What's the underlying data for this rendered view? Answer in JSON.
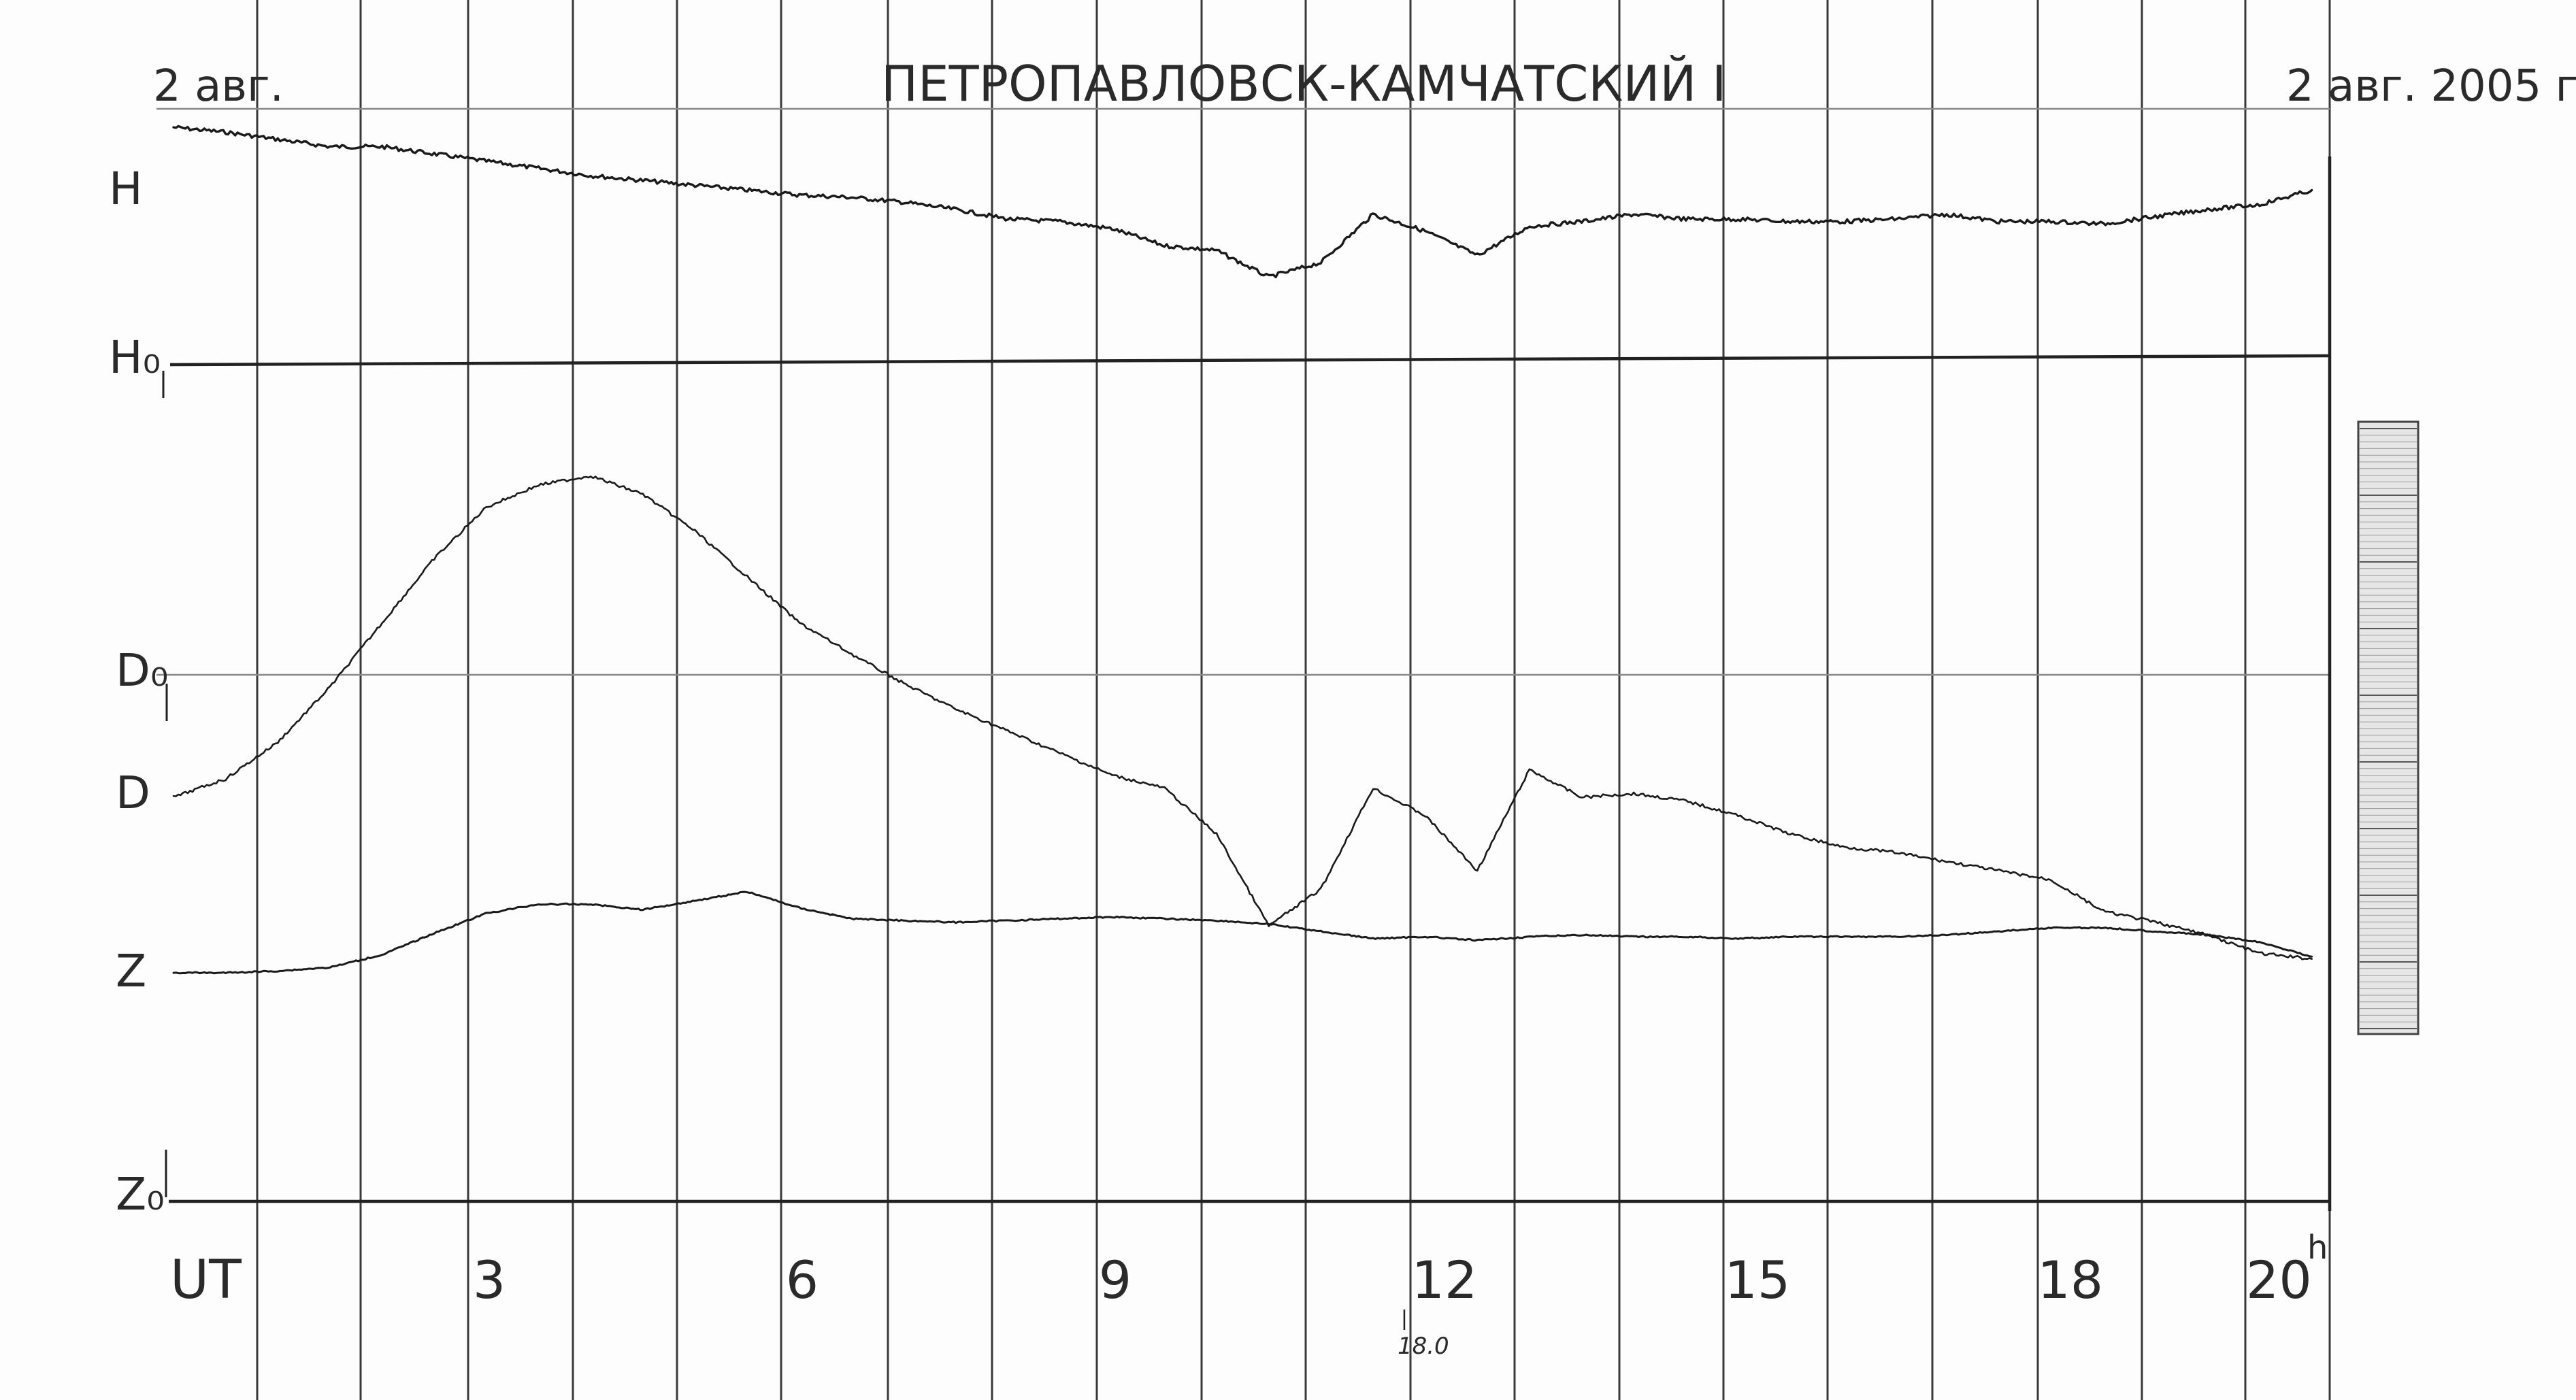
{
  "chart_data": {
    "type": "line",
    "header": {
      "left_date": "2 авг.",
      "station": "ПЕТРОПАВЛОВСК-КАМЧАТСКИЙ I",
      "right_date": "2 авг. 2005 г."
    },
    "trace_labels": [
      "H",
      "H₀",
      "D₀",
      "D",
      "Z",
      "Z₀"
    ],
    "x_axis": {
      "label": "UT",
      "ticks": [
        {
          "hour": 3,
          "label": "3"
        },
        {
          "hour": 6,
          "label": "6"
        },
        {
          "hour": 9,
          "label": "9"
        },
        {
          "hour": 12,
          "label": "12"
        },
        {
          "hour": 15,
          "label": "15"
        },
        {
          "hour": 18,
          "label": "18"
        },
        {
          "hour": 20,
          "label": "20"
        }
      ],
      "end_suffix": "h",
      "range": [
        0,
        20.5
      ]
    },
    "annotations": [
      {
        "hour": 11.8,
        "text": "18.0"
      }
    ],
    "series": [
      {
        "key": "H",
        "x": [
          0,
          0.5,
          1,
          1.5,
          2,
          2.5,
          3,
          3.5,
          4,
          4.5,
          5,
          5.5,
          6,
          6.5,
          7,
          7.5,
          8,
          8.5,
          9,
          9.5,
          10,
          10.5,
          11,
          11.5,
          12,
          12.5,
          13,
          13.5,
          14,
          14.5,
          15,
          15.5,
          16,
          16.5,
          17,
          17.5,
          18,
          18.5,
          19,
          19.5,
          20,
          20.5
        ],
        "y": [
          96,
          94,
          91,
          88,
          88,
          85,
          82,
          79,
          76,
          74,
          72,
          70,
          68,
          67,
          65,
          62,
          58,
          57,
          54,
          47,
          45,
          34,
          40,
          60,
          53,
          43,
          55,
          57,
          60,
          58,
          58,
          57,
          57,
          58,
          60,
          57,
          57,
          56,
          59,
          62,
          64,
          70
        ]
      },
      {
        "key": "D",
        "x": [
          0,
          0.5,
          1,
          1.5,
          2,
          2.5,
          3,
          3.5,
          4,
          4.5,
          5,
          5.5,
          6,
          6.5,
          7,
          7.5,
          8,
          8.5,
          9,
          9.5,
          10,
          10.5,
          11,
          11.5,
          12,
          12.5,
          13,
          13.5,
          14,
          14.5,
          15,
          15.5,
          16,
          16.5,
          17,
          17.5,
          18,
          18.5,
          19,
          19.5,
          20,
          20.5
        ],
        "y": [
          0,
          10,
          30,
          60,
          95,
          130,
          158,
          170,
          175,
          165,
          145,
          120,
          95,
          78,
          62,
          48,
          36,
          24,
          12,
          5,
          -20,
          -70,
          -50,
          5,
          -10,
          -40,
          15,
          0,
          2,
          -2,
          -10,
          -20,
          -27,
          -30,
          -35,
          -40,
          -45,
          -62,
          -68,
          -75,
          -85,
          -88
        ]
      },
      {
        "key": "Z",
        "x": [
          0,
          0.5,
          1,
          1.5,
          2,
          2.5,
          3,
          3.5,
          4,
          4.5,
          5,
          5.5,
          6,
          6.5,
          7,
          7.5,
          8,
          8.5,
          9,
          9.5,
          10,
          10.5,
          11,
          11.5,
          12,
          12.5,
          13,
          13.5,
          14,
          14.5,
          15,
          15.5,
          16,
          16.5,
          17,
          17.5,
          18,
          18.5,
          19,
          19.5,
          20,
          20.5
        ],
        "y": [
          0,
          0,
          1,
          3,
          10,
          22,
          33,
          38,
          38,
          35,
          40,
          45,
          36,
          30,
          29,
          28,
          29,
          30,
          31,
          30,
          29,
          27,
          23,
          19,
          20,
          18,
          20,
          21,
          20,
          20,
          19,
          20,
          20,
          20,
          21,
          23,
          25,
          25,
          23,
          21,
          17,
          9
        ]
      }
    ]
  }
}
